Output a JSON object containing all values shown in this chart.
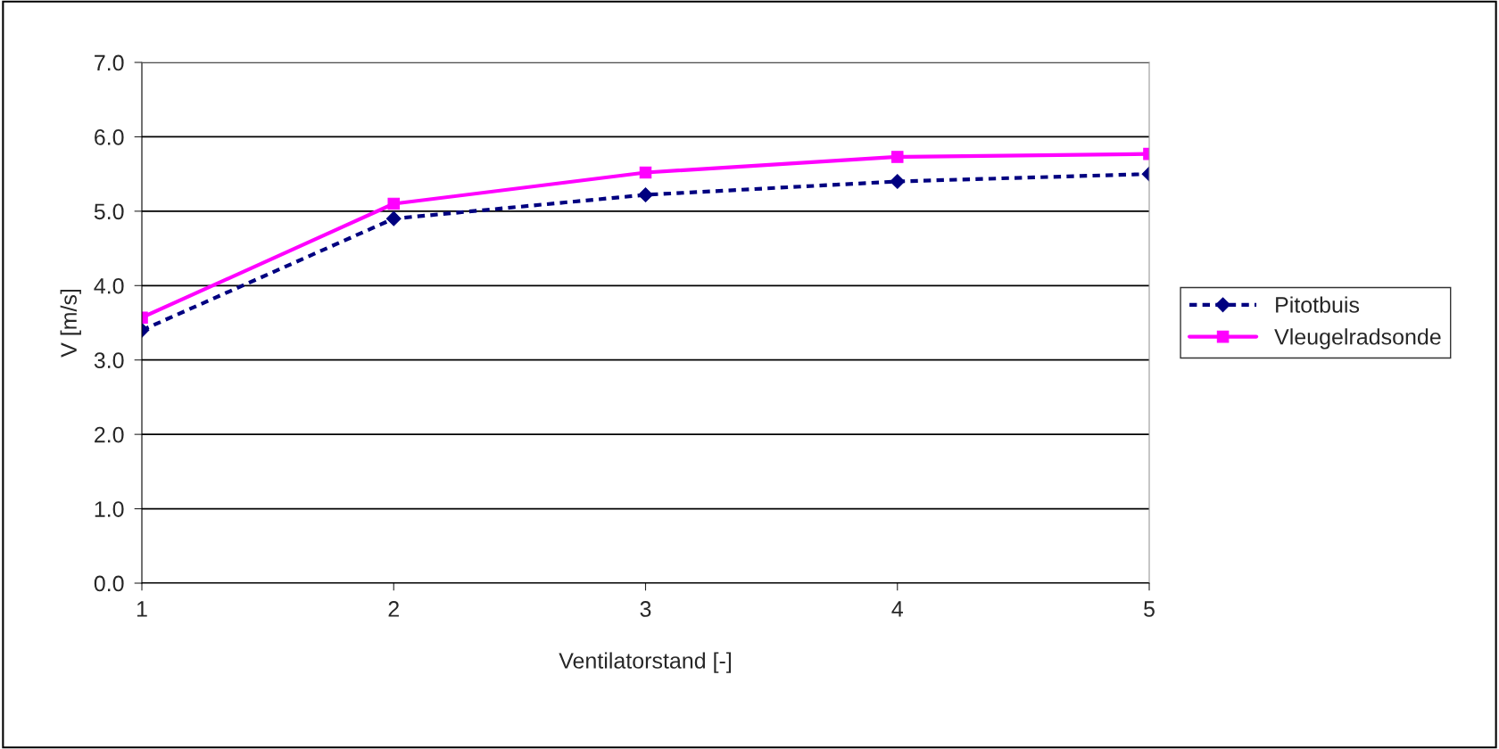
{
  "chart_data": {
    "type": "line",
    "xlabel": "Ventilatorstand [-]",
    "ylabel": "V [m/s]",
    "categories": [
      "1",
      "2",
      "3",
      "4",
      "5"
    ],
    "series": [
      {
        "name": "Pitotbuis",
        "color": "#000080",
        "values": [
          3.4,
          4.9,
          5.22,
          5.4,
          5.5
        ],
        "marker": "diamond",
        "line_style": "dashed"
      },
      {
        "name": "Vleugelradsonde",
        "color": "#ff00ff",
        "values": [
          3.57,
          5.1,
          5.52,
          5.73,
          5.77
        ],
        "marker": "square",
        "line_style": "solid"
      }
    ],
    "ylim": [
      0,
      7
    ],
    "yticks": [
      {
        "value": 0,
        "label": "0.0"
      },
      {
        "value": 1,
        "label": "1.0"
      },
      {
        "value": 2,
        "label": "2.0"
      },
      {
        "value": 3,
        "label": "3.0"
      },
      {
        "value": 4,
        "label": "4.0"
      },
      {
        "value": 5,
        "label": "5.0"
      },
      {
        "value": 6,
        "label": "6.0"
      },
      {
        "value": 7,
        "label": "7.0"
      }
    ],
    "grid": "y",
    "legend": "right"
  }
}
